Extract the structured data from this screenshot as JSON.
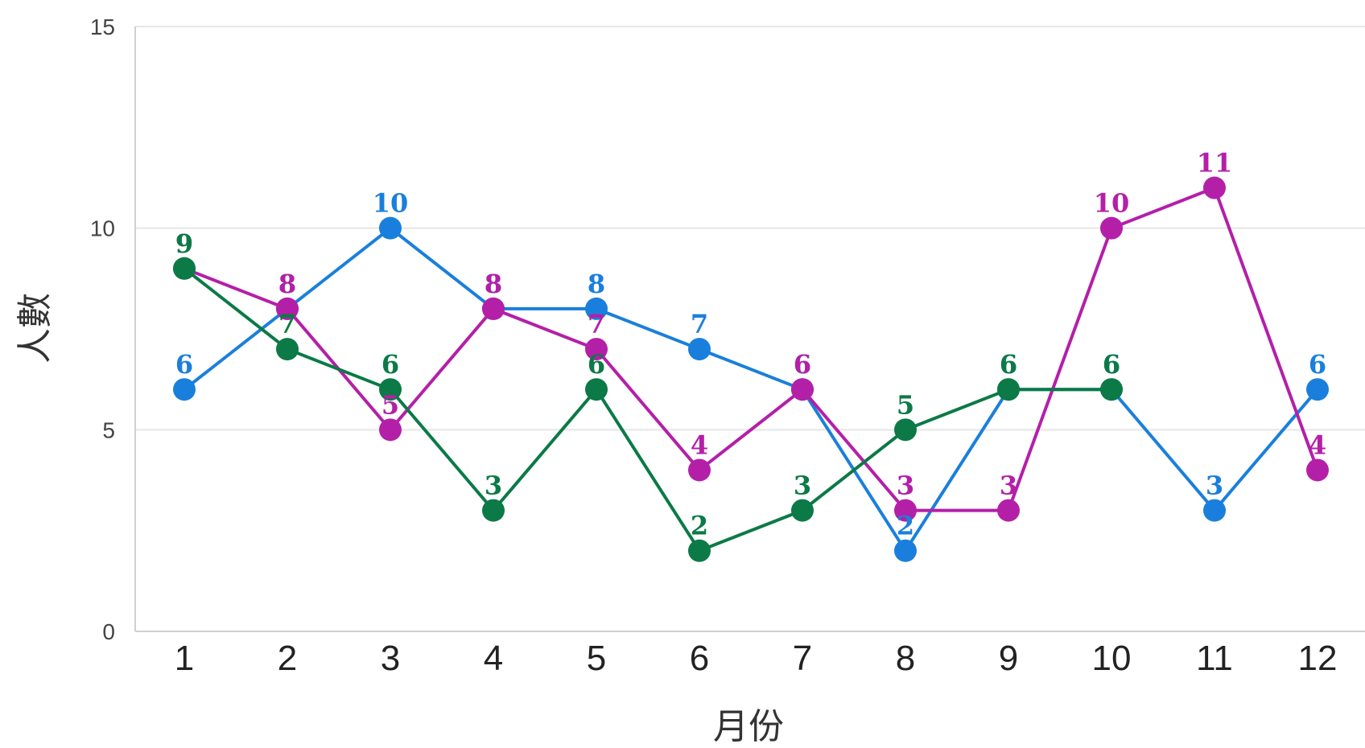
{
  "chart_data": {
    "type": "line",
    "title": "",
    "xlabel": "月份",
    "ylabel": "人數",
    "ylim": [
      0,
      15
    ],
    "yticks": [
      0,
      5,
      10,
      15
    ],
    "grid": true,
    "legend": "none",
    "data_labels": true,
    "categories": [
      "1",
      "2",
      "3",
      "4",
      "5",
      "6",
      "7",
      "8",
      "9",
      "10",
      "11",
      "12"
    ],
    "series": [
      {
        "color": "#1a7fdc",
        "values": [
          6,
          8,
          10,
          8,
          8,
          7,
          6,
          2,
          6,
          6,
          3,
          6
        ]
      },
      {
        "color": "#b41fa8",
        "values": [
          9,
          8,
          5,
          8,
          7,
          4,
          6,
          3,
          3,
          10,
          11,
          4
        ]
      },
      {
        "color": "#0b7a46",
        "values": [
          9,
          7,
          6,
          3,
          6,
          2,
          3,
          5,
          6,
          6,
          null,
          null
        ]
      }
    ]
  }
}
